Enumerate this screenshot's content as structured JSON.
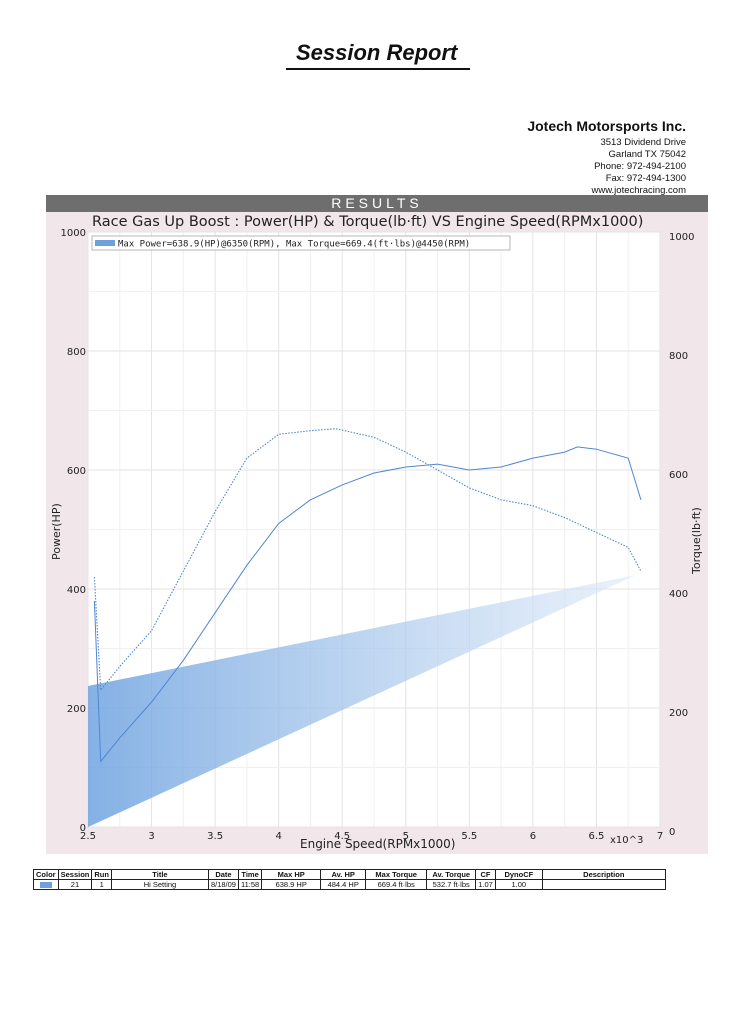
{
  "report": {
    "title": "Session Report"
  },
  "company": {
    "name": "Jotech Motorsports Inc.",
    "address1": "3513 Dividend Drive",
    "address2": "Garland TX 75042",
    "phone": "Phone: 972-494-2100",
    "fax": "Fax:     972-494-1300",
    "web": "www.jotechracing.com"
  },
  "results_label": "RESULTS",
  "chart_data": {
    "type": "line",
    "title": "Race Gas Up Boost : Power(HP) & Torque(lb·ft) VS Engine Speed(RPMx1000)",
    "legend": "Max Power=638.9(HP)@6350(RPM), Max Torque=669.4(ft·lbs)@4450(RPM)",
    "legend_color": "#6fa0de",
    "xlabel": "Engine Speed(RPMx1000)",
    "x_unit_label": "x10^3",
    "ylabel_left": "Power(HP)",
    "ylabel_right": "Torque(lb·ft)",
    "xlim": [
      2.5,
      7
    ],
    "ylim": [
      0,
      1000
    ],
    "x_ticks": [
      "2.5",
      "3",
      "3.5",
      "4",
      "4.5",
      "5",
      "5.5",
      "6",
      "6.5",
      "7"
    ],
    "x_tick_values": [
      2.5,
      3,
      3.5,
      4,
      4.5,
      5,
      5.5,
      6,
      6.5,
      7
    ],
    "y_ticks_left": [
      "0",
      "200",
      "400",
      "600",
      "800",
      "1000"
    ],
    "y_ticks_right": [
      "0",
      "200",
      "400",
      "600",
      "800",
      "1000"
    ],
    "y_tick_values": [
      0,
      200,
      400,
      600,
      800,
      1000
    ],
    "grid": true,
    "series": [
      {
        "style": "solid",
        "color": "#4f86d3",
        "x": [
          2.55,
          2.6,
          2.75,
          3.0,
          3.25,
          3.5,
          3.75,
          4.0,
          4.25,
          4.5,
          4.75,
          5.0,
          5.25,
          5.5,
          5.75,
          6.0,
          6.25,
          6.35,
          6.5,
          6.75,
          6.85
        ],
        "y": [
          380,
          110,
          150,
          210,
          280,
          360,
          440,
          510,
          550,
          575,
          595,
          605,
          610,
          600,
          605,
          620,
          630,
          638.9,
          635,
          620,
          550
        ]
      },
      {
        "style": "dotted",
        "color": "#4f86d3",
        "x": [
          2.55,
          2.6,
          2.75,
          3.0,
          3.25,
          3.5,
          3.75,
          4.0,
          4.25,
          4.45,
          4.75,
          5.0,
          5.25,
          5.5,
          5.75,
          6.0,
          6.25,
          6.5,
          6.75,
          6.85
        ],
        "y": [
          420,
          230,
          270,
          330,
          430,
          530,
          620,
          660,
          666,
          669.4,
          655,
          630,
          600,
          570,
          550,
          540,
          520,
          495,
          470,
          430
        ]
      }
    ]
  },
  "session_table": {
    "headers": [
      "Color",
      "Session",
      "Run",
      "Title",
      "Date",
      "Time",
      "Max HP",
      "Av. HP",
      "Max Torque",
      "Av. Torque",
      "CF",
      "DynoCF",
      "Description"
    ],
    "row": {
      "session": "21",
      "run": "1",
      "title": "Hi Setting",
      "date": "8/18/09",
      "time": "11:58",
      "max_hp": "638.9 HP",
      "av_hp": "484.4 HP",
      "max_torque": "669.4 ft·lbs",
      "av_torque": "532.7 ft·lbs",
      "cf": "1.07",
      "dynocf": "1.00",
      "description": ""
    }
  }
}
